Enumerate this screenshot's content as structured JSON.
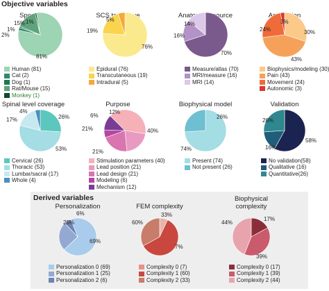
{
  "page": {
    "title": "Objective variables",
    "derived_title": "Derived variables"
  },
  "chart_data": [
    {
      "type": "pie",
      "group": "objective",
      "title": "Species",
      "categories": [
        "Human (81)",
        "Cat (2)",
        "Dog (1)",
        "Rat/Mouse (15)",
        "Monkey (1)"
      ],
      "values": [
        81,
        2,
        1,
        15,
        1
      ],
      "percent_labels": [
        "81%",
        "2%",
        "1%",
        "15%",
        "1%"
      ],
      "colors": [
        "#9dd4b3",
        "#2a8c6b",
        "#1f7a50",
        "#5fa37a",
        "#0d4a2a"
      ],
      "legend_colors": [
        "#9dd4b3",
        "#2a8c6b",
        "#1f7a50",
        "#5fa37a",
        "#0d4a2a"
      ],
      "highlight_legend_index": 4,
      "highlight_color": "#2e7d32"
    },
    {
      "type": "pie",
      "group": "objective",
      "title": "SCS technique",
      "categories": [
        "Epidural (76)",
        "Transcutaneous (19)",
        "Intradural (5)"
      ],
      "values": [
        76,
        19,
        5
      ],
      "percent_labels": [
        "76%",
        "19%",
        "5%"
      ],
      "colors": [
        "#fbe98d",
        "#f9d44c",
        "#f4a93a"
      ],
      "legend_colors": [
        "#fbe98d",
        "#f9d44c",
        "#f4a93a"
      ]
    },
    {
      "type": "pie",
      "group": "objective",
      "title": "Anatomical source",
      "categories": [
        "Measure/atlas (70)",
        "MRI/measure (16)",
        "MRI (14)"
      ],
      "values": [
        70,
        16,
        14
      ],
      "percent_labels": [
        "70%",
        "16%",
        "14%"
      ],
      "colors": [
        "#7a5a8c",
        "#b393c7",
        "#ddc8e9"
      ],
      "legend_colors": [
        "#7a5a8c",
        "#b393c7",
        "#ddc8e9"
      ]
    },
    {
      "type": "pie",
      "group": "objective",
      "title": "Application",
      "categories": [
        "Biophysics/modeling (30)",
        "Pain (43)",
        "Movement (24)",
        "Autonomic (3)"
      ],
      "values": [
        30,
        43,
        24,
        3
      ],
      "percent_labels": [
        "30%",
        "43%",
        "24%",
        "3%"
      ],
      "colors": [
        "#fbc98a",
        "#f6a15a",
        "#ef6b3a",
        "#d63a2f"
      ],
      "legend_colors": [
        "#fbc98a",
        "#f6a15a",
        "#ef6b3a",
        "#d63a2f"
      ]
    },
    {
      "type": "pie",
      "group": "objective",
      "title": "Spinal level coverage",
      "categories": [
        "Cervical (26)",
        "Thoracic (53)",
        "Lumbar/sacral (17)",
        "Whole (4)"
      ],
      "values": [
        26,
        53,
        17,
        4
      ],
      "percent_labels": [
        "26%",
        "53%",
        "17%",
        "4%"
      ],
      "colors": [
        "#5cc7bd",
        "#a4dde4",
        "#c6e9f0",
        "#4c8fbf"
      ],
      "legend_colors": [
        "#5cc7bd",
        "#a4dde4",
        "#c6e9f0",
        "#4c8fbf"
      ]
    },
    {
      "type": "pie",
      "group": "objective",
      "title": "Purpose",
      "categories": [
        "Stimulation parameters (40)",
        "Lead position (21)",
        "Lead design (21)",
        "Modeling (6)",
        "Mechanism (12)"
      ],
      "values": [
        40,
        21,
        21,
        6,
        12
      ],
      "percent_labels": [
        "40%",
        "21%",
        "21%",
        "6%",
        "12%"
      ],
      "colors": [
        "#f6b0b7",
        "#e99ac0",
        "#d975b0",
        "#b845a0",
        "#7a3d96"
      ],
      "legend_colors": [
        "#f6b0b7",
        "#e99ac0",
        "#d975b0",
        "#b845a0",
        "#7a3d96"
      ]
    },
    {
      "type": "pie",
      "group": "objective",
      "title": "Biophysical model",
      "categories": [
        "Present (74)",
        "Not present (26)"
      ],
      "values": [
        74,
        26
      ],
      "percent_labels": [
        "74%",
        "26%"
      ],
      "colors": [
        "#a4dde4",
        "#6fbfd2"
      ],
      "legend_colors": [
        "#a4dde4",
        "#6fbfd2"
      ]
    },
    {
      "type": "pie",
      "group": "objective",
      "title": "Validation",
      "categories": [
        "No validation(58)",
        "Qualitative (16)",
        "Quantitative(26)"
      ],
      "values": [
        58,
        16,
        26
      ],
      "percent_labels": [
        "58%",
        "16%",
        "26%"
      ],
      "colors": [
        "#1b2350",
        "#1f5d79",
        "#2f8790"
      ],
      "legend_colors": [
        "#1b2350",
        "#1f5d79",
        "#2f8790"
      ]
    },
    {
      "type": "pie",
      "group": "derived",
      "title": "Personalization",
      "categories": [
        "Personalization 0 (69)",
        "Personalization 1 (25)",
        "Personalization 2 (6)"
      ],
      "values": [
        69,
        25,
        6
      ],
      "percent_labels": [
        "69%",
        "25%",
        "6%"
      ],
      "colors": [
        "#a9ccec",
        "#93a9d2",
        "#6f83b6"
      ],
      "legend_colors": [
        "#a9ccec",
        "#93a9d2",
        "#6f83b6"
      ]
    },
    {
      "type": "pie",
      "group": "derived",
      "title": "FEM complexity",
      "categories": [
        "Complexity 0 (7)",
        "Complexity 1 (60)",
        "Complexity 2 (33)"
      ],
      "values": [
        7,
        60,
        33
      ],
      "percent_labels": [
        "7%",
        "60%",
        "33%"
      ],
      "colors": [
        "#e8b3aa",
        "#c9473f",
        "#c77d6a"
      ],
      "legend_colors": [
        "#e8908a",
        "#c9473f",
        "#c77d6a"
      ]
    },
    {
      "type": "pie",
      "group": "derived",
      "title": "Biophysical complexity",
      "categories": [
        "Complexity 0 (17)",
        "Complexity 1 (39)",
        "Complexity 2 (44)"
      ],
      "values": [
        17,
        39,
        44
      ],
      "percent_labels": [
        "17%",
        "39%",
        "44%"
      ],
      "colors": [
        "#8a2e3c",
        "#c95b6c",
        "#e8a4ad"
      ],
      "legend_colors": [
        "#8a2e3c",
        "#c95b6c",
        "#e8a4ad"
      ]
    }
  ]
}
